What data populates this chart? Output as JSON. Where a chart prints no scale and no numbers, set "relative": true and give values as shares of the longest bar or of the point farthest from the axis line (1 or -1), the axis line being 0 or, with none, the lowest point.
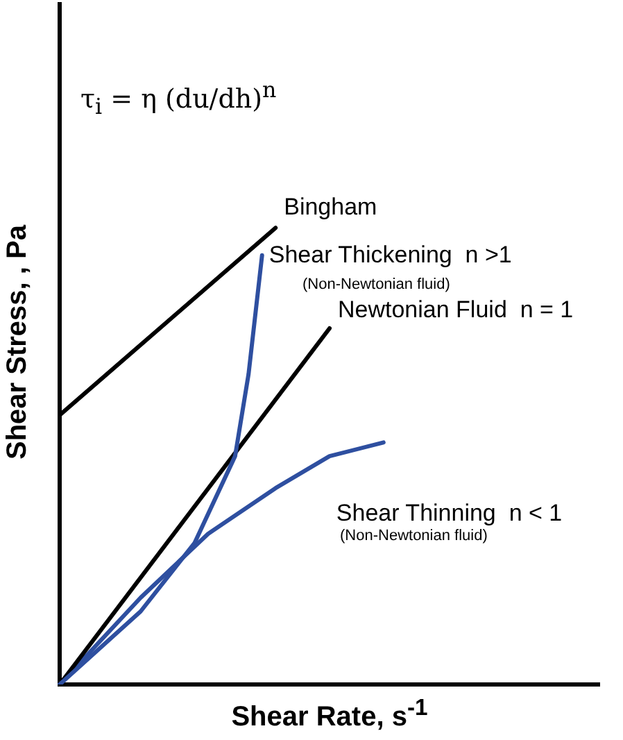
{
  "chart_data": {
    "type": "line",
    "relative": true,
    "xlabel": "Shear Rate, s$^{-1}$",
    "ylabel": "Shear Stress, , Pa",
    "grid": false,
    "legend": false,
    "marker": "none",
    "line_style": "solid",
    "categories": [
      null,
      null,
      null,
      null,
      null,
      null,
      null,
      null,
      null,
      null,
      null,
      null,
      null,
      null,
      null,
      null,
      null,
      null,
      null,
      null,
      null,
      null,
      null,
      null,
      null,
      null,
      null,
      null,
      null,
      null,
      null,
      null,
      null,
      null,
      null,
      null,
      null,
      null,
      null,
      null,
      null
    ],
    "series": [
      {
        "name": "Bingham",
        "color": "#000000",
        "values": [
          0.59,
          null,
          null,
          null,
          null,
          null,
          null,
          null,
          null,
          null,
          null,
          null,
          null,
          null,
          null,
          null,
          1,
          null,
          null,
          null,
          null,
          null,
          null,
          null,
          null,
          null,
          null,
          null,
          null,
          null,
          null,
          null,
          null,
          null,
          null,
          null,
          null,
          null,
          null,
          null,
          null
        ]
      },
      {
        "name": "Shear Thickening  n >1",
        "color": "#2e4fa0",
        "values": [
          0,
          null,
          null,
          null,
          null,
          null,
          0.16,
          null,
          null,
          null,
          0.31,
          null,
          null,
          0.5,
          0.68,
          0.94,
          null,
          null,
          null,
          null,
          null,
          null,
          null,
          null,
          null,
          null,
          null,
          null,
          null,
          null,
          null,
          null,
          null,
          null,
          null,
          null,
          null,
          null,
          null,
          null,
          null
        ]
      },
      {
        "name": "Newtonian Fluid  n = 1",
        "color": "#000000",
        "values": [
          0,
          null,
          null,
          null,
          null,
          null,
          null,
          null,
          null,
          null,
          null,
          null,
          null,
          null,
          null,
          null,
          null,
          null,
          null,
          null,
          0.78,
          null,
          null,
          null,
          null,
          null,
          null,
          null,
          null,
          null,
          null,
          null,
          null,
          null,
          null,
          null,
          null,
          null,
          null,
          null,
          null
        ]
      },
      {
        "name": "Shear Thinning  n < 1",
        "color": "#2e4fa0",
        "values": [
          0,
          null,
          null,
          null,
          null,
          null,
          0.19,
          null,
          null,
          null,
          null,
          0.33,
          null,
          null,
          null,
          null,
          0.43,
          null,
          null,
          null,
          0.5,
          null,
          null,
          null,
          0.53,
          null,
          null,
          null,
          null,
          null,
          null,
          null,
          null,
          null,
          null,
          null,
          null,
          null,
          null,
          null,
          null
        ]
      }
    ],
    "annotations": [
      "τ$_{i}$ = η (du/dh)$^{n}$",
      "(Non-Newtonian fluid)",
      "(Non-Newtonian fluid)"
    ]
  }
}
